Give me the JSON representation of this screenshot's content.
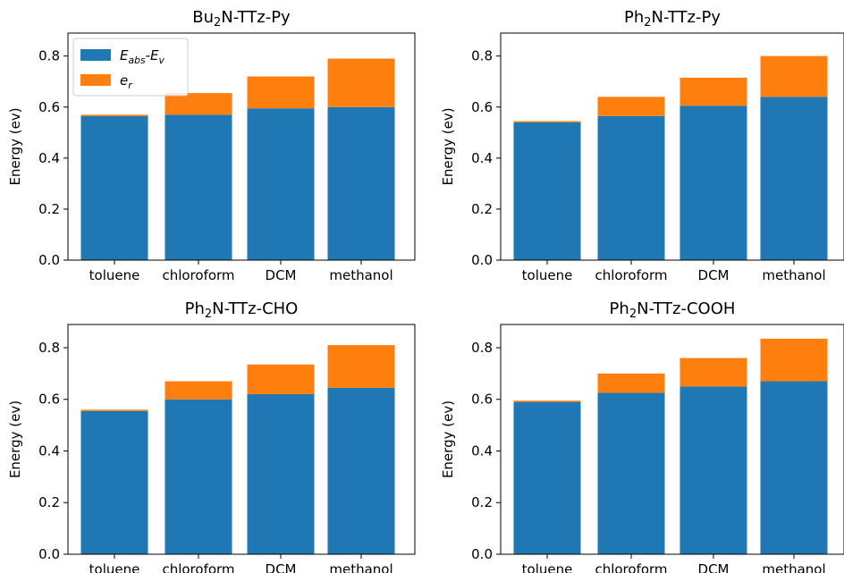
{
  "colors": {
    "base": "#1f77b4",
    "top": "#ff7f0e"
  },
  "legend": {
    "base_label": "E_abs-E_v",
    "top_label": "e_r",
    "placement": "upper-left of first subplot"
  },
  "chart_data": [
    {
      "type": "bar",
      "stacked": true,
      "title": "Bu2N-TTz-Py",
      "ylabel": "Energy (ev)",
      "xlabel": "",
      "ylim": [
        0,
        0.89
      ],
      "yticks": [
        "0.0",
        "0.2",
        "0.4",
        "0.6",
        "0.8"
      ],
      "categories": [
        "toluene",
        "chloroform",
        "DCM",
        "methanol"
      ],
      "series": [
        {
          "name": "E_abs-E_v",
          "values": [
            0.565,
            0.57,
            0.595,
            0.6
          ]
        },
        {
          "name": "e_r",
          "values": [
            0.005,
            0.085,
            0.125,
            0.19
          ]
        }
      ]
    },
    {
      "type": "bar",
      "stacked": true,
      "title": "Ph2N-TTz-Py",
      "ylabel": "Energy (ev)",
      "xlabel": "",
      "ylim": [
        0,
        0.89
      ],
      "yticks": [
        "0.0",
        "0.2",
        "0.4",
        "0.6",
        "0.8"
      ],
      "categories": [
        "toluene",
        "chloroform",
        "DCM",
        "methanol"
      ],
      "series": [
        {
          "name": "E_abs-E_v",
          "values": [
            0.54,
            0.565,
            0.605,
            0.64
          ]
        },
        {
          "name": "e_r",
          "values": [
            0.005,
            0.075,
            0.11,
            0.16
          ]
        }
      ]
    },
    {
      "type": "bar",
      "stacked": true,
      "title": "Ph2N-TTz-CHO",
      "ylabel": "Energy (ev)",
      "xlabel": "",
      "ylim": [
        0,
        0.89
      ],
      "yticks": [
        "0.0",
        "0.2",
        "0.4",
        "0.6",
        "0.8"
      ],
      "categories": [
        "toluene",
        "chloroform",
        "DCM",
        "methanol"
      ],
      "series": [
        {
          "name": "E_abs-E_v",
          "values": [
            0.555,
            0.6,
            0.62,
            0.645
          ]
        },
        {
          "name": "e_r",
          "values": [
            0.005,
            0.07,
            0.115,
            0.165
          ]
        }
      ]
    },
    {
      "type": "bar",
      "stacked": true,
      "title": "Ph2N-TTz-COOH",
      "ylabel": "Energy (ev)",
      "xlabel": "",
      "ylim": [
        0,
        0.89
      ],
      "yticks": [
        "0.0",
        "0.2",
        "0.4",
        "0.6",
        "0.8"
      ],
      "categories": [
        "toluene",
        "chloroform",
        "DCM",
        "methanol"
      ],
      "series": [
        {
          "name": "E_abs-E_v",
          "values": [
            0.59,
            0.625,
            0.65,
            0.67
          ]
        },
        {
          "name": "e_r",
          "values": [
            0.005,
            0.075,
            0.11,
            0.165
          ]
        }
      ]
    }
  ]
}
